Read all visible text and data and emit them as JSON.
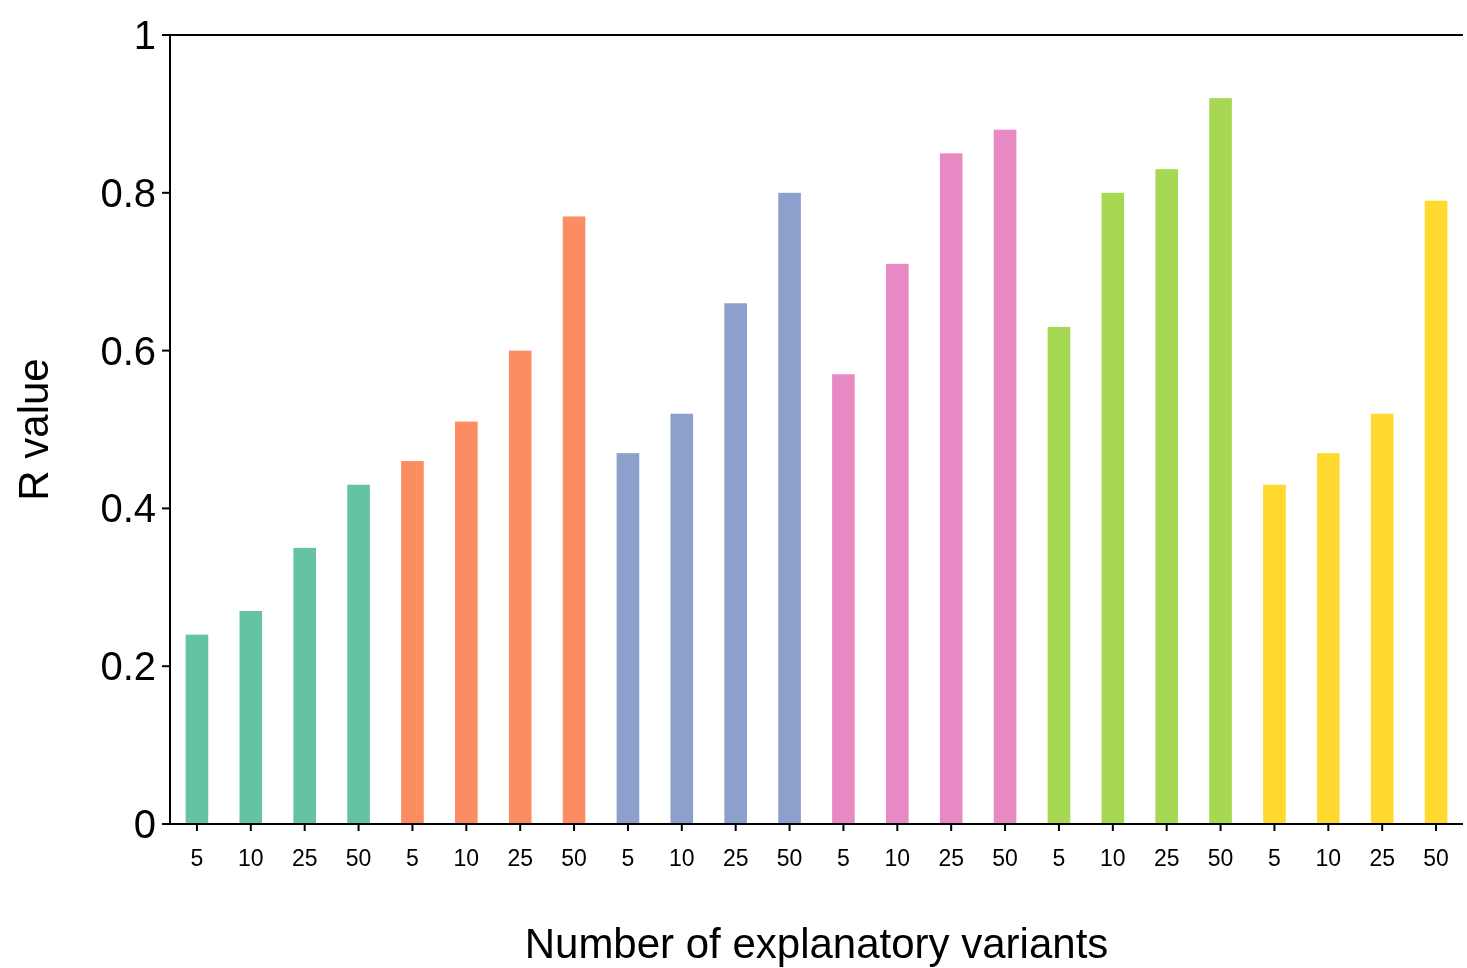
{
  "chart_data": {
    "type": "bar",
    "xlabel": "Number of explanatory variants",
    "ylabel": "R value",
    "categories": [
      "5",
      "10",
      "25",
      "50",
      "5",
      "10",
      "25",
      "50",
      "5",
      "10",
      "25",
      "50",
      "5",
      "10",
      "25",
      "50",
      "5",
      "10",
      "25",
      "50",
      "5",
      "10",
      "25",
      "50"
    ],
    "values": [
      0.24,
      0.27,
      0.35,
      0.43,
      0.46,
      0.51,
      0.6,
      0.77,
      0.47,
      0.52,
      0.66,
      0.8,
      0.57,
      0.71,
      0.85,
      0.88,
      0.63,
      0.8,
      0.83,
      0.92,
      0.43,
      0.47,
      0.52,
      0.79
    ],
    "colors": [
      "#66c2a5",
      "#66c2a5",
      "#66c2a5",
      "#66c2a5",
      "#fc8d62",
      "#fc8d62",
      "#fc8d62",
      "#fc8d62",
      "#8da0cb",
      "#8da0cb",
      "#8da0cb",
      "#8da0cb",
      "#e78ac3",
      "#e78ac3",
      "#e78ac3",
      "#e78ac3",
      "#a6d854",
      "#a6d854",
      "#a6d854",
      "#a6d854",
      "#ffd92f",
      "#ffd92f",
      "#ffd92f",
      "#ffd92f"
    ],
    "ylim": [
      0,
      1
    ],
    "yticks": [
      0,
      0.2,
      0.4,
      0.6,
      0.8,
      1
    ],
    "grid": false
  }
}
